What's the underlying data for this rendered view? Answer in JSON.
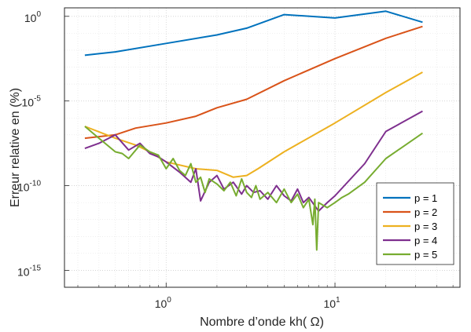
{
  "chart_data": {
    "type": "line",
    "title": "",
    "xlabel": "Nombre d’onde kh( Ω)",
    "ylabel": "Erreur relative en (%)",
    "xscale": "log",
    "yscale": "log",
    "xlim": [
      0.25,
      55
    ],
    "ylim_exp": [
      -16,
      0.5
    ],
    "xticks": [
      {
        "value": 1,
        "base": "10",
        "exp": "0"
      },
      {
        "value": 10,
        "base": "10",
        "exp": "1"
      }
    ],
    "yticks": [
      {
        "value": 0,
        "base": "10",
        "exp": "0"
      },
      {
        "value": -5,
        "base": "10",
        "exp": "-5"
      },
      {
        "value": -10,
        "base": "10",
        "exp": "-10"
      },
      {
        "value": -15,
        "base": "10",
        "exp": "-15"
      }
    ],
    "grid": true,
    "minor_grid": true,
    "legend_position": "bottom-right",
    "series": [
      {
        "name": "p = 1",
        "color": "#0072BD",
        "x": [
          0.33,
          0.5,
          1,
          2,
          3,
          5,
          10,
          20,
          33
        ],
        "y_log10": [
          -2.3,
          -2.1,
          -1.6,
          -1.1,
          -0.7,
          0.1,
          -0.1,
          0.3,
          -0.35
        ]
      },
      {
        "name": "p = 2",
        "color": "#D95319",
        "x": [
          0.33,
          0.5,
          0.66,
          1,
          1.5,
          2,
          3,
          5,
          10,
          20,
          33
        ],
        "y_log10": [
          -7.2,
          -7.0,
          -6.6,
          -6.3,
          -5.9,
          -5.4,
          -4.9,
          -3.8,
          -2.5,
          -1.3,
          -0.6
        ]
      },
      {
        "name": "p = 3",
        "color": "#EDB120",
        "x": [
          0.33,
          0.5,
          0.66,
          0.8,
          1,
          1.5,
          2,
          2.5,
          3,
          3.5,
          5,
          10,
          20,
          33
        ],
        "y_log10": [
          -6.5,
          -7.2,
          -7.6,
          -8.0,
          -8.6,
          -9.0,
          -9.1,
          -9.5,
          -9.4,
          -9.0,
          -8.0,
          -6.3,
          -4.5,
          -3.3
        ]
      },
      {
        "name": "p = 4",
        "color": "#7E2F8E",
        "x": [
          0.33,
          0.4,
          0.5,
          0.6,
          0.7,
          0.8,
          0.9,
          1,
          1.2,
          1.4,
          1.5,
          1.6,
          1.8,
          2,
          2.2,
          2.5,
          2.8,
          3,
          3.3,
          3.6,
          4,
          4.5,
          5,
          5.5,
          6,
          6.5,
          7,
          8,
          9,
          10,
          15,
          20,
          33
        ],
        "y_log10": [
          -7.8,
          -7.5,
          -7.0,
          -7.9,
          -7.5,
          -8.1,
          -8.3,
          -8.6,
          -9.2,
          -9.8,
          -9.0,
          -10.9,
          -9.8,
          -9.4,
          -10.2,
          -9.8,
          -10.5,
          -10.0,
          -10.4,
          -10.3,
          -10.8,
          -10.0,
          -10.6,
          -10.9,
          -10.2,
          -11.0,
          -10.7,
          -11.5,
          -11.0,
          -10.6,
          -8.7,
          -6.8,
          -5.6
        ]
      },
      {
        "name": "p = 5",
        "color": "#77AC30",
        "x": [
          0.33,
          0.4,
          0.5,
          0.55,
          0.6,
          0.7,
          0.8,
          0.9,
          1,
          1.1,
          1.2,
          1.3,
          1.4,
          1.5,
          1.6,
          1.7,
          1.8,
          2,
          2.2,
          2.4,
          2.6,
          2.8,
          3,
          3.2,
          3.4,
          3.6,
          4,
          4.5,
          5,
          5.5,
          6,
          6.5,
          7,
          7.4,
          7.6,
          7.8,
          8,
          9,
          10,
          11,
          12,
          15,
          20,
          33
        ],
        "y_log10": [
          -6.5,
          -7.2,
          -8.0,
          -8.1,
          -8.4,
          -7.6,
          -8.0,
          -8.2,
          -9.0,
          -8.4,
          -9.1,
          -9.4,
          -8.7,
          -9.8,
          -9.5,
          -10.4,
          -9.6,
          -9.9,
          -10.3,
          -9.8,
          -10.6,
          -9.6,
          -10.4,
          -10.7,
          -10.0,
          -10.8,
          -10.4,
          -11.0,
          -10.2,
          -11.0,
          -10.5,
          -11.3,
          -10.8,
          -12.3,
          -10.8,
          -13.8,
          -11.0,
          -11.3,
          -11.0,
          -10.7,
          -10.5,
          -9.8,
          -8.4,
          -6.9
        ]
      }
    ]
  }
}
